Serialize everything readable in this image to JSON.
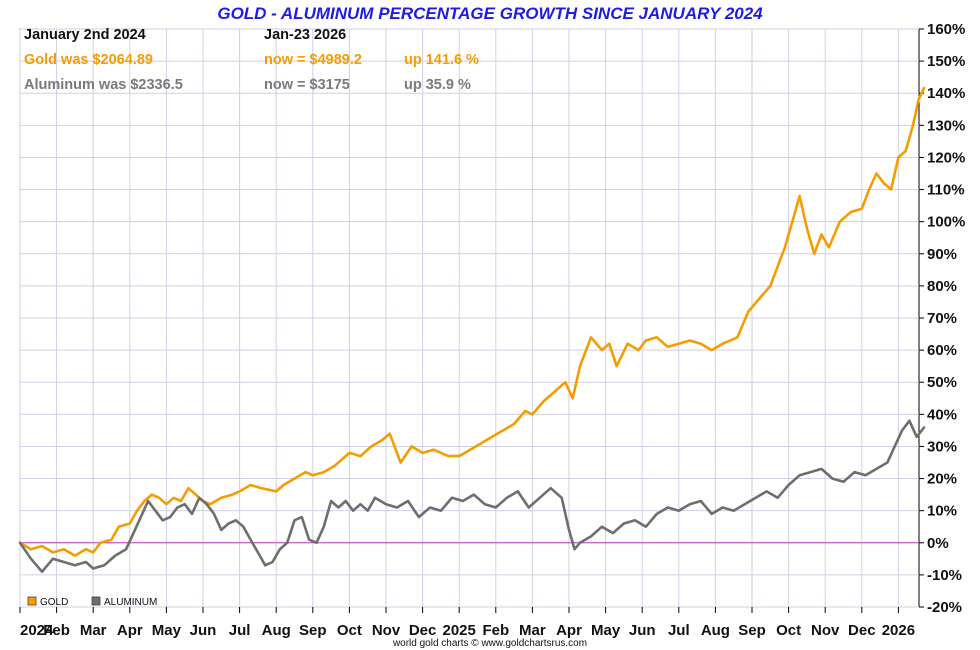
{
  "chart_data": {
    "type": "line",
    "title": "GOLD - ALUMINUM PERCENTAGE GROWTH SINCE JANUARY 2024",
    "start_label": "January 2nd 2024",
    "end_label": "Jan-23  2026",
    "credit": "world gold charts © www.goldchartsrus.com",
    "ylim": [
      -20,
      160
    ],
    "yticks": [
      -20,
      -10,
      0,
      10,
      20,
      30,
      40,
      50,
      60,
      70,
      80,
      90,
      100,
      110,
      120,
      130,
      140,
      150,
      160
    ],
    "ytick_labels": [
      "-20%",
      "-10%",
      "0%",
      "10%",
      "20%",
      "30%",
      "40%",
      "50%",
      "60%",
      "70%",
      "80%",
      "90%",
      "100%",
      "110%",
      "120%",
      "130%",
      "140%",
      "150%",
      "160%"
    ],
    "xlim": [
      0,
      24.7
    ],
    "xticks": [
      0,
      1,
      2,
      3,
      4,
      5,
      6,
      7,
      8,
      9,
      10,
      11,
      12,
      13,
      14,
      15,
      16,
      17,
      18,
      19,
      20,
      21,
      22,
      23,
      24
    ],
    "xtick_labels": [
      "2024",
      "Feb",
      "Mar",
      "Apr",
      "May",
      "Jun",
      "Jul",
      "Aug",
      "Sep",
      "Oct",
      "Nov",
      "Dec",
      "2025",
      "Feb",
      "Mar",
      "Apr",
      "May",
      "Jun",
      "Jul",
      "Aug",
      "Sep",
      "Oct",
      "Nov",
      "Dec",
      "2026"
    ],
    "series": [
      {
        "name": "GOLD",
        "color": "#f59d00",
        "summary": {
          "was": "Gold was $2064.89",
          "now": "now = $4989.2",
          "change": "up 141.6 %"
        },
        "x": [
          0,
          0.3,
          0.6,
          0.9,
          1.2,
          1.5,
          1.8,
          2.0,
          2.2,
          2.5,
          2.7,
          3.0,
          3.2,
          3.4,
          3.6,
          3.8,
          4.0,
          4.2,
          4.4,
          4.6,
          4.8,
          5.0,
          5.2,
          5.5,
          5.8,
          6.0,
          6.3,
          6.6,
          7.0,
          7.2,
          7.5,
          7.8,
          8.0,
          8.3,
          8.6,
          9.0,
          9.3,
          9.6,
          9.9,
          10.1,
          10.4,
          10.7,
          11.0,
          11.3,
          11.7,
          12.0,
          12.3,
          12.6,
          12.9,
          13.2,
          13.5,
          13.8,
          14.0,
          14.3,
          14.6,
          14.9,
          15.1,
          15.3,
          15.6,
          15.9,
          16.1,
          16.3,
          16.6,
          16.9,
          17.1,
          17.4,
          17.7,
          18.0,
          18.3,
          18.6,
          18.9,
          19.2,
          19.6,
          19.9,
          20.2,
          20.5,
          20.7,
          20.9,
          21.1,
          21.3,
          21.5,
          21.7,
          21.9,
          22.1,
          22.4,
          22.7,
          23.0,
          23.2,
          23.4,
          23.6,
          23.8,
          24.0,
          24.2,
          24.4,
          24.55,
          24.7
        ],
        "values": [
          0,
          -2,
          -1,
          -3,
          -2,
          -4,
          -2,
          -3,
          0,
          1,
          5,
          6,
          10,
          13,
          15,
          14,
          12,
          14,
          13,
          17,
          15,
          13,
          12,
          14,
          15,
          16,
          18,
          17,
          16,
          18,
          20,
          22,
          21,
          22,
          24,
          28,
          27,
          30,
          32,
          34,
          25,
          30,
          28,
          29,
          27,
          27,
          29,
          31,
          33,
          35,
          37,
          41,
          40,
          44,
          47,
          50,
          45,
          55,
          64,
          60,
          62,
          55,
          62,
          60,
          63,
          64,
          61,
          62,
          63,
          62,
          60,
          62,
          64,
          72,
          76,
          80,
          86,
          92,
          100,
          108,
          98,
          90,
          96,
          92,
          100,
          103,
          104,
          110,
          115,
          112,
          110,
          120,
          122,
          130,
          138,
          141.6
        ]
      },
      {
        "name": "ALUMINUM",
        "color": "#6e6e6e",
        "summary": {
          "was": "Aluminum was $2336.5",
          "now": "now = $3175",
          "change": "up 35.9 %"
        },
        "x": [
          0,
          0.3,
          0.6,
          0.9,
          1.2,
          1.5,
          1.8,
          2.0,
          2.3,
          2.6,
          2.9,
          3.1,
          3.3,
          3.5,
          3.7,
          3.9,
          4.1,
          4.3,
          4.5,
          4.7,
          4.9,
          5.1,
          5.3,
          5.5,
          5.7,
          5.9,
          6.1,
          6.3,
          6.5,
          6.7,
          6.9,
          7.1,
          7.3,
          7.5,
          7.7,
          7.9,
          8.1,
          8.3,
          8.5,
          8.7,
          8.9,
          9.1,
          9.3,
          9.5,
          9.7,
          10.0,
          10.3,
          10.6,
          10.9,
          11.2,
          11.5,
          11.8,
          12.1,
          12.4,
          12.7,
          13.0,
          13.3,
          13.6,
          13.9,
          14.2,
          14.5,
          14.8,
          15.0,
          15.15,
          15.3,
          15.6,
          15.9,
          16.2,
          16.5,
          16.8,
          17.1,
          17.4,
          17.7,
          18.0,
          18.3,
          18.6,
          18.9,
          19.2,
          19.5,
          19.8,
          20.1,
          20.4,
          20.7,
          21.0,
          21.3,
          21.6,
          21.9,
          22.2,
          22.5,
          22.8,
          23.1,
          23.4,
          23.7,
          23.9,
          24.1,
          24.3,
          24.5,
          24.7
        ],
        "values": [
          0,
          -5,
          -9,
          -5,
          -6,
          -7,
          -6,
          -8,
          -7,
          -4,
          -2,
          3,
          8,
          13,
          10,
          7,
          8,
          11,
          12,
          9,
          14,
          12,
          9,
          4,
          6,
          7,
          5,
          1,
          -3,
          -7,
          -6,
          -2,
          0,
          7,
          8,
          1,
          0,
          5,
          13,
          11,
          13,
          10,
          12,
          10,
          14,
          12,
          11,
          13,
          8,
          11,
          10,
          14,
          13,
          15,
          12,
          11,
          14,
          16,
          11,
          14,
          17,
          14,
          4,
          -2,
          0,
          2,
          5,
          3,
          6,
          7,
          5,
          9,
          11,
          10,
          12,
          13,
          9,
          11,
          10,
          12,
          14,
          16,
          14,
          18,
          21,
          22,
          23,
          20,
          19,
          22,
          21,
          23,
          25,
          30,
          35,
          38,
          33,
          35.9
        ]
      }
    ],
    "legend": [
      "GOLD",
      "ALUMINUM"
    ],
    "legend_position": "bottom-left",
    "grid": true
  }
}
